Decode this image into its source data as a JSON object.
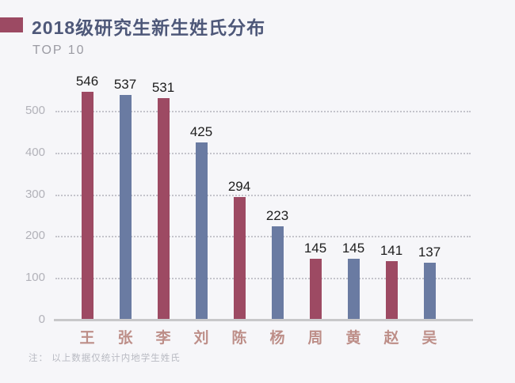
{
  "header": {
    "title": "2018级研究生新生姓氏分布",
    "subtitle": "TOP 10"
  },
  "footnote": {
    "text": "注： 以上数据仅统计内地学生姓氏"
  },
  "colors": {
    "background": "#f6f6f9",
    "title_text": "#4e5879",
    "title_marker": "#9c4a63",
    "bar_maroon": "#9d4a63",
    "bar_blue": "#6a7ba2",
    "x_label_text": "#bd8e88",
    "y_label_text": "#b2b2b9",
    "value_label_text": "#1e1e1e",
    "gridline": "#c4c4cb",
    "axis_line": "#c8c8ca"
  },
  "chart_data": {
    "type": "bar",
    "title": "2018级研究生新生姓氏分布",
    "subtitle": "TOP 10",
    "categories": [
      "王",
      "张",
      "李",
      "刘",
      "陈",
      "杨",
      "周",
      "黄",
      "赵",
      "吴"
    ],
    "values": [
      546,
      537,
      531,
      425,
      294,
      223,
      145,
      145,
      141,
      137
    ],
    "bar_colors": [
      "#9d4a63",
      "#6a7ba2",
      "#9d4a63",
      "#6a7ba2",
      "#9d4a63",
      "#6a7ba2",
      "#9d4a63",
      "#6a7ba2",
      "#9d4a63",
      "#6a7ba2"
    ],
    "yticks": [
      0,
      100,
      200,
      300,
      400,
      500
    ],
    "ylim": [
      0,
      575
    ],
    "xlabel": "",
    "ylabel": "",
    "grid": "dotted-horizontal",
    "legend": "none",
    "value_labels": true,
    "note": "注： 以上数据仅统计内地学生姓氏"
  }
}
